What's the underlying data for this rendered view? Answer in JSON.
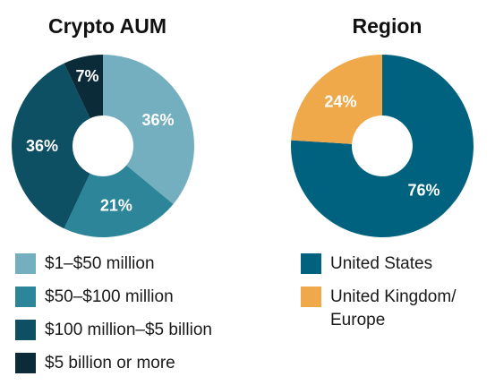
{
  "chart_data": [
    {
      "type": "pie",
      "title": "Crypto AUM",
      "donut": true,
      "unit": "%",
      "categories": [
        "$1–$50 million",
        "$50–$100 million",
        "$100 million–$5 billion",
        "$5 billion or more"
      ],
      "values": [
        36,
        21,
        36,
        7
      ],
      "colors": [
        "#74AFC0",
        "#2D8599",
        "#0D4F63",
        "#0C2B38"
      ],
      "legend_position": "bottom"
    },
    {
      "type": "pie",
      "title": "Region",
      "donut": true,
      "unit": "%",
      "categories": [
        "United States",
        "United Kingdom/ Europe"
      ],
      "values": [
        76,
        24
      ],
      "colors": [
        "#00627F",
        "#EFA84A"
      ],
      "legend_position": "bottom"
    }
  ]
}
